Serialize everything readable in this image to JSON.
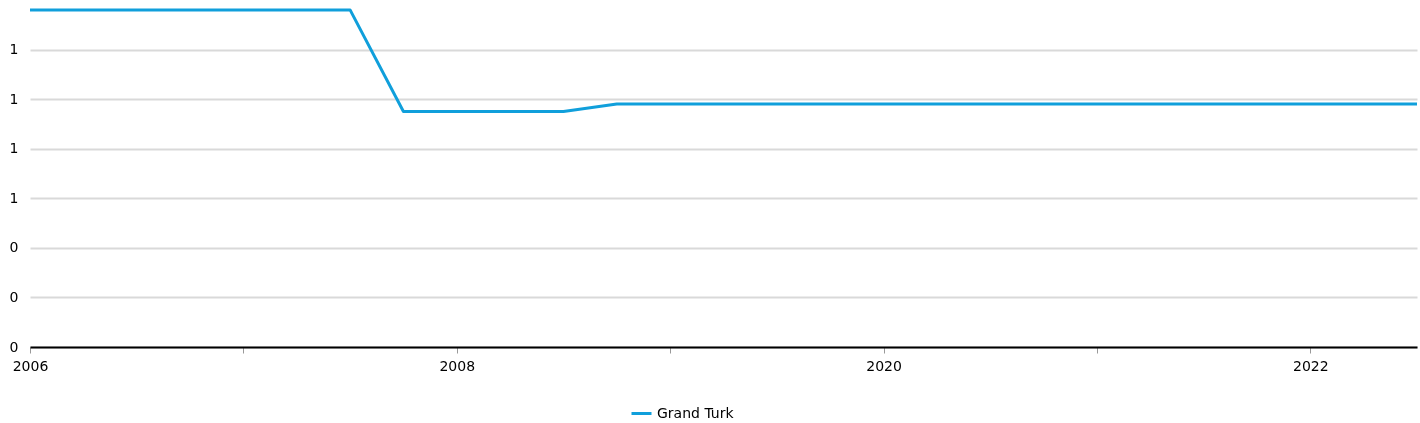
{
  "chart_data": {
    "type": "line",
    "categories": [
      "2006",
      null,
      null,
      null,
      null,
      null,
      null,
      null,
      "2008",
      null,
      null,
      null,
      null,
      null,
      null,
      null,
      "2020",
      null,
      null,
      null,
      null,
      null,
      null,
      null,
      "2022",
      null,
      null
    ],
    "series": [
      {
        "name": "Grand Turk",
        "color": "#109fdb",
        "values": [
          1.36,
          1.36,
          1.36,
          1.36,
          1.36,
          1.36,
          1.36,
          0.95,
          0.95,
          0.95,
          0.95,
          0.98,
          0.98,
          0.98,
          0.98,
          0.98,
          0.98,
          0.98,
          0.98,
          0.98,
          0.98,
          0.98,
          0.98,
          0.98,
          0.98,
          0.98,
          0.98
        ]
      }
    ],
    "ylim": [
      0,
      1.4
    ],
    "yticks": [
      0,
      {
        "value": 0.2,
        "label": "0"
      },
      {
        "value": 0.4,
        "label": "0"
      },
      {
        "value": 0.6,
        "label": "1"
      },
      {
        "value": 0.8,
        "label": "1"
      },
      {
        "value": 1.0,
        "label": "1"
      },
      {
        "value": 1.2,
        "label": "1"
      }
    ],
    "grid": "y",
    "legend": "bottom",
    "marker": "none",
    "line_style": "solid"
  }
}
